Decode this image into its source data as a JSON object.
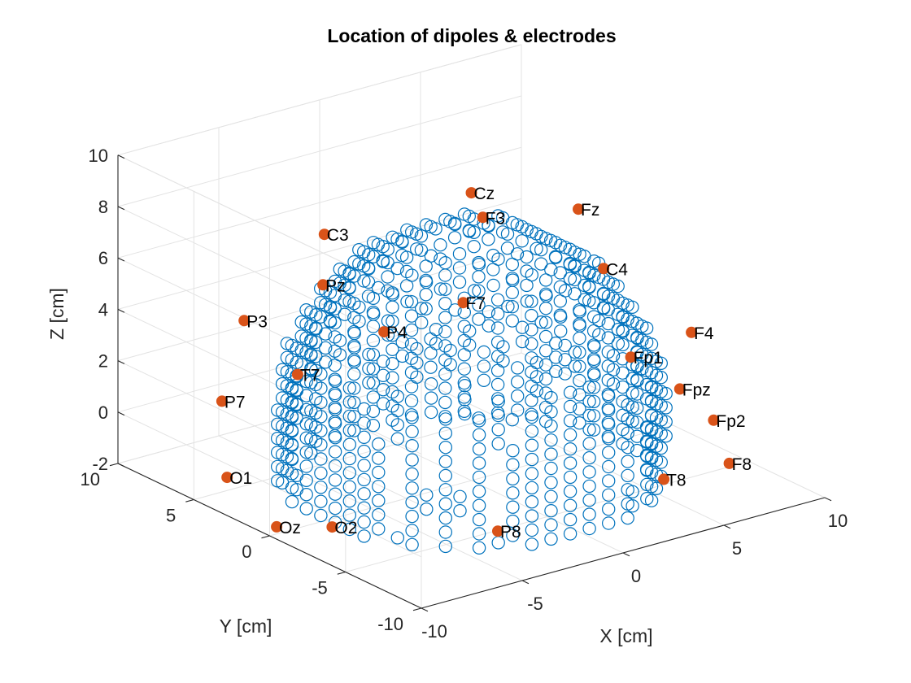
{
  "chart_data": {
    "type": "scatter3d",
    "title": "Location of dipoles & electrodes",
    "xlabel": "X [cm]",
    "ylabel": "Y [cm]",
    "zlabel": "Z [cm]",
    "xlim": [
      -10,
      10
    ],
    "ylim": [
      -10,
      10
    ],
    "zlim": [
      -2,
      10
    ],
    "x_ticks": [
      "-10",
      "-5",
      "0",
      "5",
      "10"
    ],
    "y_ticks": [
      "-10",
      "-5",
      "0",
      "5",
      "10"
    ],
    "z_ticks": [
      "-2",
      "0",
      "2",
      "4",
      "6",
      "8",
      "10"
    ],
    "grid": true,
    "view": "default 3-D (azimuth -37.5, elevation 30)",
    "dipoles": {
      "shape": "hemisphere of open circles",
      "radius": 8,
      "z_range": [
        -2,
        8
      ],
      "color": "#0072BD"
    },
    "electrodes": {
      "color": "#D95319",
      "points": [
        {
          "label": "Cz",
          "x": 0,
          "y": 0,
          "z": 9.2
        },
        {
          "label": "C3",
          "x": -3.3,
          "y": 5.3,
          "z": 6.8
        },
        {
          "label": "F3",
          "x": 2.3,
          "y": 2.3,
          "z": 7.1
        },
        {
          "label": "Fz",
          "x": 5.0,
          "y": -0.4,
          "z": 7.6
        },
        {
          "label": "Pz",
          "x": -6.0,
          "y": 1.8,
          "z": 6.4
        },
        {
          "label": "P3",
          "x": -6.6,
          "y": 6.2,
          "z": 3.9
        },
        {
          "label": "C4",
          "x": 3.4,
          "y": -4.2,
          "z": 6.7
        },
        {
          "label": "F4",
          "x": 6.7,
          "y": -5.6,
          "z": 3.9
        },
        {
          "label": "F7",
          "x": 0.8,
          "y": 1.6,
          "z": 4.3
        },
        {
          "label": "T7",
          "x": -4.4,
          "y": 5.6,
          "z": 1.5
        },
        {
          "label": "P4",
          "x": -2.6,
          "y": 2.3,
          "z": 3.7
        },
        {
          "label": "Fp1",
          "x": 5.2,
          "y": -3.6,
          "z": 2.7
        },
        {
          "label": "Fpz",
          "x": 6.5,
          "y": -5.1,
          "z": 1.6
        },
        {
          "label": "Fp2",
          "x": 7.2,
          "y": -6.4,
          "z": 0.6
        },
        {
          "label": "F8",
          "x": 7.9,
          "y": -6.5,
          "z": -1.2
        },
        {
          "label": "P7",
          "x": -7.7,
          "y": 6.2,
          "z": 1.0
        },
        {
          "label": "O1",
          "x": -8.5,
          "y": 4.8,
          "z": -1.4
        },
        {
          "label": "Oz",
          "x": -8.0,
          "y": 2.2,
          "z": -2.7
        },
        {
          "label": "O2",
          "x": -6.6,
          "y": 0.4,
          "z": -2.5
        },
        {
          "label": "P8",
          "x": -2.0,
          "y": -4.4,
          "z": -2.3
        },
        {
          "label": "T8",
          "x": 3.6,
          "y": -7.9,
          "z": -0.5
        }
      ]
    }
  }
}
